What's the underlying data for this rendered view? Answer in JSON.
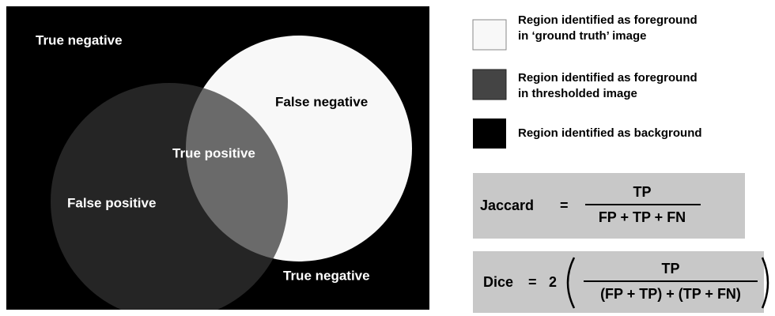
{
  "venn": {
    "labels": [
      "True negative",
      "False negative",
      "True positive",
      "False positive",
      "True negative"
    ]
  },
  "legend": [
    {
      "line1": "Region identified as foreground",
      "line2": "in ‘ground truth’ image"
    },
    {
      "line1": "Region identified as foreground",
      "line2": "in thresholded image"
    },
    {
      "line1": "Region identified as background"
    }
  ],
  "jaccard": {
    "name": "Jaccard",
    "equals": "=",
    "numerator": "TP",
    "denominator": "FP + TP + FN"
  },
  "dice": {
    "name": "Dice",
    "equals": "=",
    "factor": "2",
    "numerator": "TP",
    "denominator": "(FP + TP) + (TP + FN)"
  }
}
